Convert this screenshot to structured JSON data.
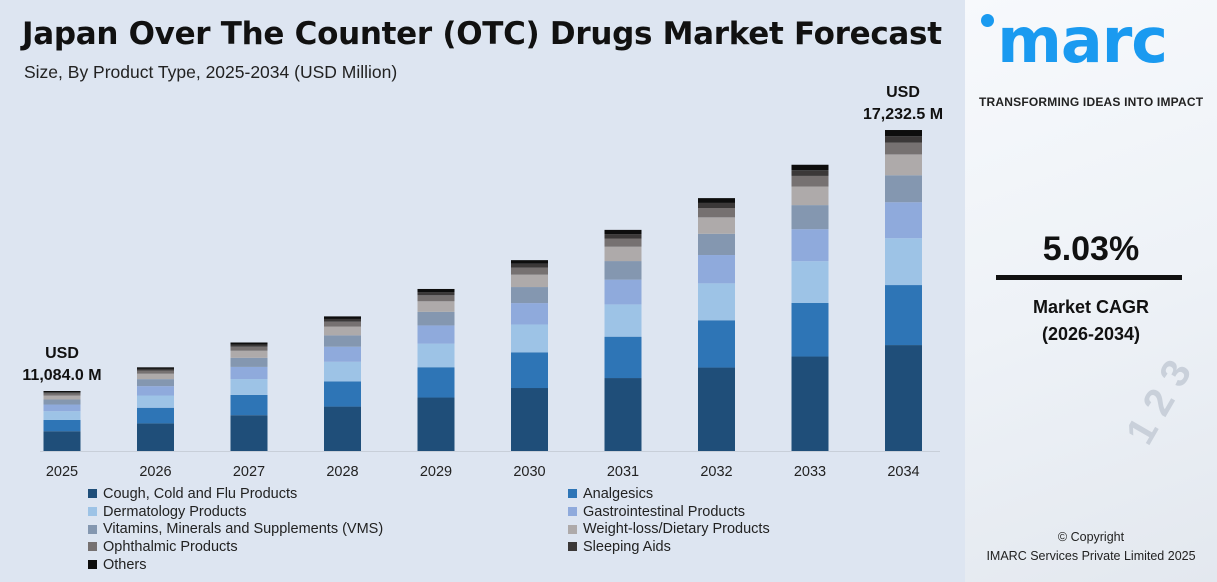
{
  "header": {
    "title": "Japan Over The Counter (OTC) Drugs Market Forecast",
    "subtitle": "Size, By Product Type, 2025-2034 (USD Million)"
  },
  "annotations": {
    "start": {
      "line1": "USD",
      "line2": "11,084.0 M"
    },
    "end": {
      "line1": "USD",
      "line2": "17,232.5 M"
    }
  },
  "chart_data": {
    "type": "bar",
    "stacked": true,
    "title": "Japan Over The Counter (OTC) Drugs Market Forecast",
    "subtitle": "Size, By Product Type, 2025-2034 (USD Million)",
    "categories": [
      "2025",
      "2026",
      "2027",
      "2028",
      "2029",
      "2030",
      "2031",
      "2032",
      "2033",
      "2034"
    ],
    "totals": [
      11084.0,
      11642,
      12227,
      12842,
      13488,
      14167,
      14880,
      15628,
      16414,
      17232.5
    ],
    "series": [
      {
        "name": "Cough, Cold and Flu Products",
        "color": "#1f4e79",
        "values": [
          3658,
          3842,
          4035,
          4238,
          4451,
          4675,
          4910,
          5157,
          5417,
          5687
        ]
      },
      {
        "name": "Analgesics",
        "color": "#2e75b6",
        "values": [
          2073,
          2177,
          2286,
          2401,
          2522,
          2649,
          2783,
          2922,
          3069,
          3222
        ]
      },
      {
        "name": "Dermatology Products",
        "color": "#9dc3e6",
        "values": [
          1618,
          1700,
          1785,
          1875,
          1969,
          2068,
          2172,
          2282,
          2396,
          2516
        ]
      },
      {
        "name": "Gastrointestinal Products",
        "color": "#8faadc",
        "values": [
          1241,
          1304,
          1369,
          1438,
          1511,
          1587,
          1667,
          1750,
          1838,
          1930
        ]
      },
      {
        "name": "Vitamins, Minerals and Supplements (VMS)",
        "color": "#8497b0",
        "values": [
          931,
          978,
          1027,
          1079,
          1133,
          1190,
          1250,
          1313,
          1379,
          1448
        ]
      },
      {
        "name": "Weight-loss/Dietary Products",
        "color": "#aeaaaa",
        "values": [
          720,
          757,
          795,
          835,
          877,
          921,
          967,
          1016,
          1067,
          1120
        ]
      },
      {
        "name": "Ophthalmic Products",
        "color": "#767171",
        "values": [
          410,
          431,
          452,
          475,
          499,
          524,
          551,
          578,
          607,
          638
        ]
      },
      {
        "name": "Sleeping Aids",
        "color": "#3b3838",
        "values": [
          222,
          233,
          245,
          257,
          270,
          283,
          298,
          313,
          328,
          345
        ]
      },
      {
        "name": "Others",
        "color": "#0d0d0d",
        "values": [
          211,
          221,
          232,
          244,
          256,
          269,
          283,
          297,
          312,
          327
        ]
      }
    ],
    "legend_position": "bottom",
    "grid": false,
    "yaxis_visible": false
  },
  "sidebar": {
    "brand": "imarc",
    "tagline": "TRANSFORMING IDEAS INTO IMPACT",
    "cagr_value": "5.03%",
    "cagr_label": "Market CAGR",
    "cagr_period": "(2026-2034)",
    "copyright": "© Copyright",
    "company": "IMARC Services Private Limited 2025",
    "brand_color": "#1a9af0"
  }
}
